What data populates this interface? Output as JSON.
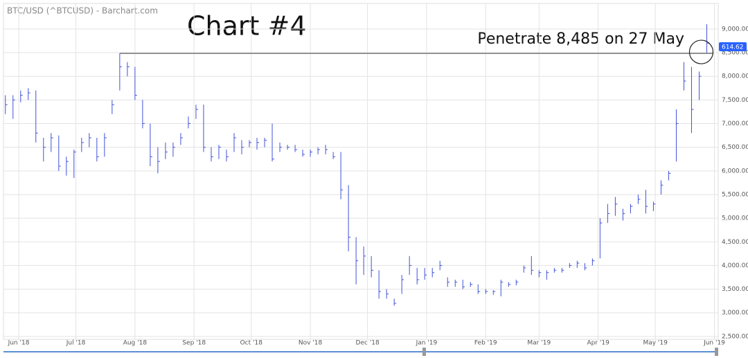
{
  "chart_data": {
    "type": "ohlc",
    "title": "BTC/USD (^BTCUSD) - Barchart.com",
    "heading": "Chart #4",
    "annotation": "Penetrate 8,485 on 27 May",
    "reference_value": 8485,
    "last_price_label": "614.62",
    "color": "#3f51d8",
    "grid": true,
    "xlim": [
      -8,
      367
    ],
    "ylim": [
      2440,
      9540
    ],
    "xticks": [
      {
        "value": 0,
        "label": "Jun '18"
      },
      {
        "value": 30,
        "label": "Jul '18"
      },
      {
        "value": 61,
        "label": "Aug '18"
      },
      {
        "value": 92,
        "label": "Sep '18"
      },
      {
        "value": 122,
        "label": "Oct '18"
      },
      {
        "value": 153,
        "label": "Nov '18"
      },
      {
        "value": 183,
        "label": "Dec '18"
      },
      {
        "value": 214,
        "label": "Jan '19"
      },
      {
        "value": 245,
        "label": "Feb '19"
      },
      {
        "value": 273,
        "label": "Mar '19"
      },
      {
        "value": 304,
        "label": "Apr '19"
      },
      {
        "value": 334,
        "label": "May '19"
      },
      {
        "value": 365,
        "label": "Jun '19"
      }
    ],
    "yticks": [
      {
        "value": 2500,
        "label": "2,500.00"
      },
      {
        "value": 3000,
        "label": "3,000.00"
      },
      {
        "value": 3500,
        "label": "3,500.00"
      },
      {
        "value": 4000,
        "label": "4,000.00"
      },
      {
        "value": 4500,
        "label": "4,500.00"
      },
      {
        "value": 5000,
        "label": "5,000.00"
      },
      {
        "value": 5500,
        "label": "5,500.00"
      },
      {
        "value": 6000,
        "label": "6,000.00"
      },
      {
        "value": 6500,
        "label": "6,500.00"
      },
      {
        "value": 7000,
        "label": "7,000.00"
      },
      {
        "value": 7500,
        "label": "7,500.00"
      },
      {
        "value": 8000,
        "label": "8,000.00"
      },
      {
        "value": 8500,
        "label": "8,500.00"
      },
      {
        "value": 9000,
        "label": "9,000.00"
      }
    ],
    "x": [
      -7,
      -3,
      1,
      5,
      9,
      13,
      17,
      21,
      25,
      29,
      33,
      37,
      41,
      45,
      49,
      53,
      57,
      61,
      65,
      69,
      73,
      77,
      81,
      85,
      89,
      93,
      97,
      101,
      105,
      109,
      113,
      117,
      121,
      125,
      129,
      133,
      137,
      141,
      145,
      149,
      153,
      157,
      161,
      165,
      169,
      173,
      177,
      181,
      185,
      189,
      193,
      197,
      201,
      205,
      209,
      213,
      217,
      221,
      225,
      229,
      233,
      237,
      241,
      245,
      249,
      253,
      257,
      261,
      265,
      269,
      273,
      277,
      281,
      285,
      289,
      293,
      297,
      301,
      305,
      309,
      313,
      317,
      321,
      325,
      329,
      333,
      337,
      341,
      345,
      349,
      353,
      357,
      361
    ],
    "close": [
      7400,
      7500,
      7600,
      7650,
      6800,
      6500,
      6700,
      6100,
      6200,
      6400,
      6600,
      6700,
      6300,
      6700,
      7400,
      8200,
      8200,
      7600,
      7000,
      6300,
      6200,
      6400,
      6500,
      6700,
      7000,
      7300,
      6500,
      6300,
      6500,
      6300,
      6700,
      6500,
      6600,
      6600,
      6650,
      6250,
      6500,
      6500,
      6450,
      6350,
      6400,
      6450,
      6450,
      6300,
      5600,
      4600,
      4100,
      4200,
      3900,
      3450,
      3400,
      3200,
      3700,
      4000,
      3700,
      3800,
      3850,
      4000,
      3650,
      3650,
      3550,
      3600,
      3450,
      3450,
      3450,
      3650,
      3600,
      3650,
      3950,
      3900,
      3850,
      3850,
      3900,
      3900,
      4000,
      4050,
      3950,
      4100,
      4900,
      5100,
      5300,
      5100,
      5250,
      5400,
      5250,
      5300,
      5700,
      5950,
      7000,
      7900,
      7300,
      8000,
      8700
    ],
    "high": [
      7600,
      7600,
      7700,
      7750,
      7700,
      6700,
      6800,
      6750,
      6300,
      6450,
      6700,
      6800,
      6700,
      6800,
      7500,
      8485,
      8300,
      8200,
      7500,
      7000,
      6500,
      6600,
      6600,
      6800,
      7150,
      7400,
      7400,
      6500,
      6550,
      6450,
      6800,
      6650,
      6650,
      6700,
      6700,
      7000,
      6600,
      6550,
      6550,
      6450,
      6450,
      6500,
      6550,
      6400,
      6400,
      5700,
      4600,
      4400,
      4200,
      3900,
      3500,
      3300,
      3800,
      4200,
      3950,
      3950,
      3950,
      4100,
      3750,
      3700,
      3700,
      3650,
      3600,
      3500,
      3480,
      3700,
      3650,
      3700,
      4000,
      4200,
      3900,
      3900,
      3950,
      3950,
      4050,
      4100,
      4050,
      4150,
      5000,
      5300,
      5450,
      5200,
      5300,
      5500,
      5600,
      5350,
      5800,
      6000,
      7300,
      8300,
      8200,
      8100,
      9100
    ],
    "low": [
      7200,
      7100,
      7450,
      7500,
      6600,
      6200,
      6400,
      6000,
      5900,
      5850,
      6400,
      6500,
      6200,
      6300,
      7200,
      7700,
      8000,
      7500,
      6900,
      6100,
      5950,
      6250,
      6300,
      6550,
      6900,
      7100,
      6400,
      6200,
      6250,
      6200,
      6400,
      6350,
      6500,
      6450,
      6500,
      6200,
      6400,
      6450,
      6400,
      6300,
      6300,
      6350,
      6350,
      6250,
      5400,
      4300,
      3600,
      3800,
      3750,
      3300,
      3300,
      3150,
      3400,
      3800,
      3600,
      3700,
      3750,
      3900,
      3550,
      3550,
      3500,
      3550,
      3400,
      3400,
      3380,
      3350,
      3550,
      3580,
      3850,
      3800,
      3750,
      3700,
      3850,
      3850,
      3950,
      3950,
      3900,
      4000,
      4150,
      4900,
      5050,
      4950,
      5100,
      5300,
      5100,
      5150,
      5500,
      5800,
      6200,
      7700,
      6800,
      7500,
      8500
    ]
  }
}
